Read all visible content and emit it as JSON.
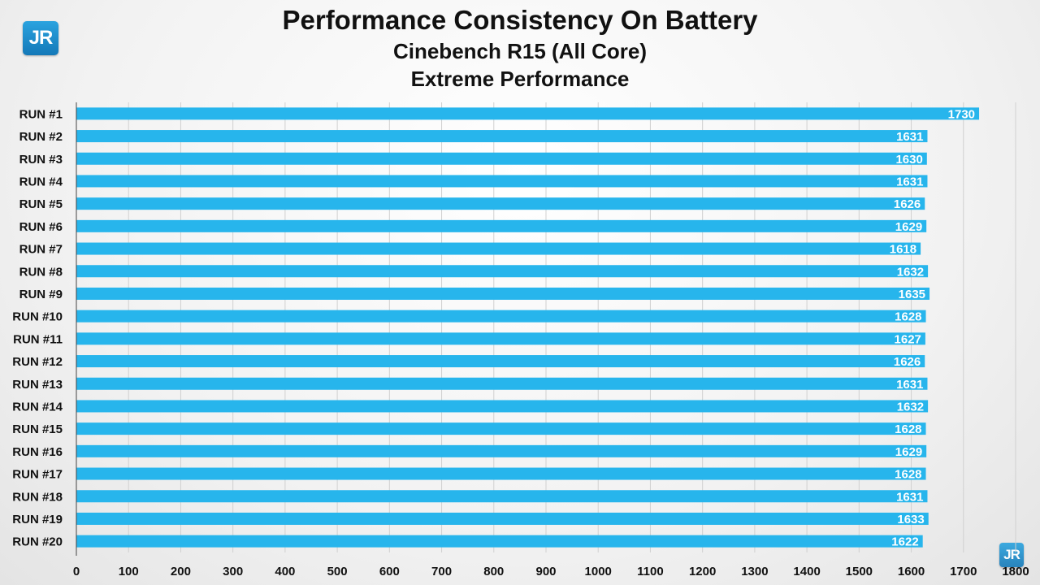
{
  "brand": {
    "logo_text": "JR",
    "accent_color": "#2aa3df"
  },
  "chart_data": {
    "type": "bar",
    "orientation": "horizontal",
    "title": "Performance Consistency On Battery",
    "subtitle": "Cinebench R15 (All Core)",
    "subtitle2": "Extreme Performance",
    "categories": [
      "RUN #1",
      "RUN #2",
      "RUN #3",
      "RUN #4",
      "RUN #5",
      "RUN #6",
      "RUN #7",
      "RUN #8",
      "RUN #9",
      "RUN #10",
      "RUN #11",
      "RUN #12",
      "RUN #13",
      "RUN #14",
      "RUN #15",
      "RUN #16",
      "RUN #17",
      "RUN #18",
      "RUN #19",
      "RUN #20"
    ],
    "values": [
      1730,
      1631,
      1630,
      1631,
      1626,
      1629,
      1618,
      1632,
      1635,
      1628,
      1627,
      1626,
      1631,
      1632,
      1628,
      1629,
      1628,
      1631,
      1633,
      1622
    ],
    "xlim": [
      0,
      1800
    ],
    "xticks": [
      0,
      100,
      200,
      300,
      400,
      500,
      600,
      700,
      800,
      900,
      1000,
      1100,
      1200,
      1300,
      1400,
      1500,
      1600,
      1700,
      1800
    ],
    "bar_color": "#27b5ec",
    "label_color": "#ffffff",
    "grid": true
  }
}
